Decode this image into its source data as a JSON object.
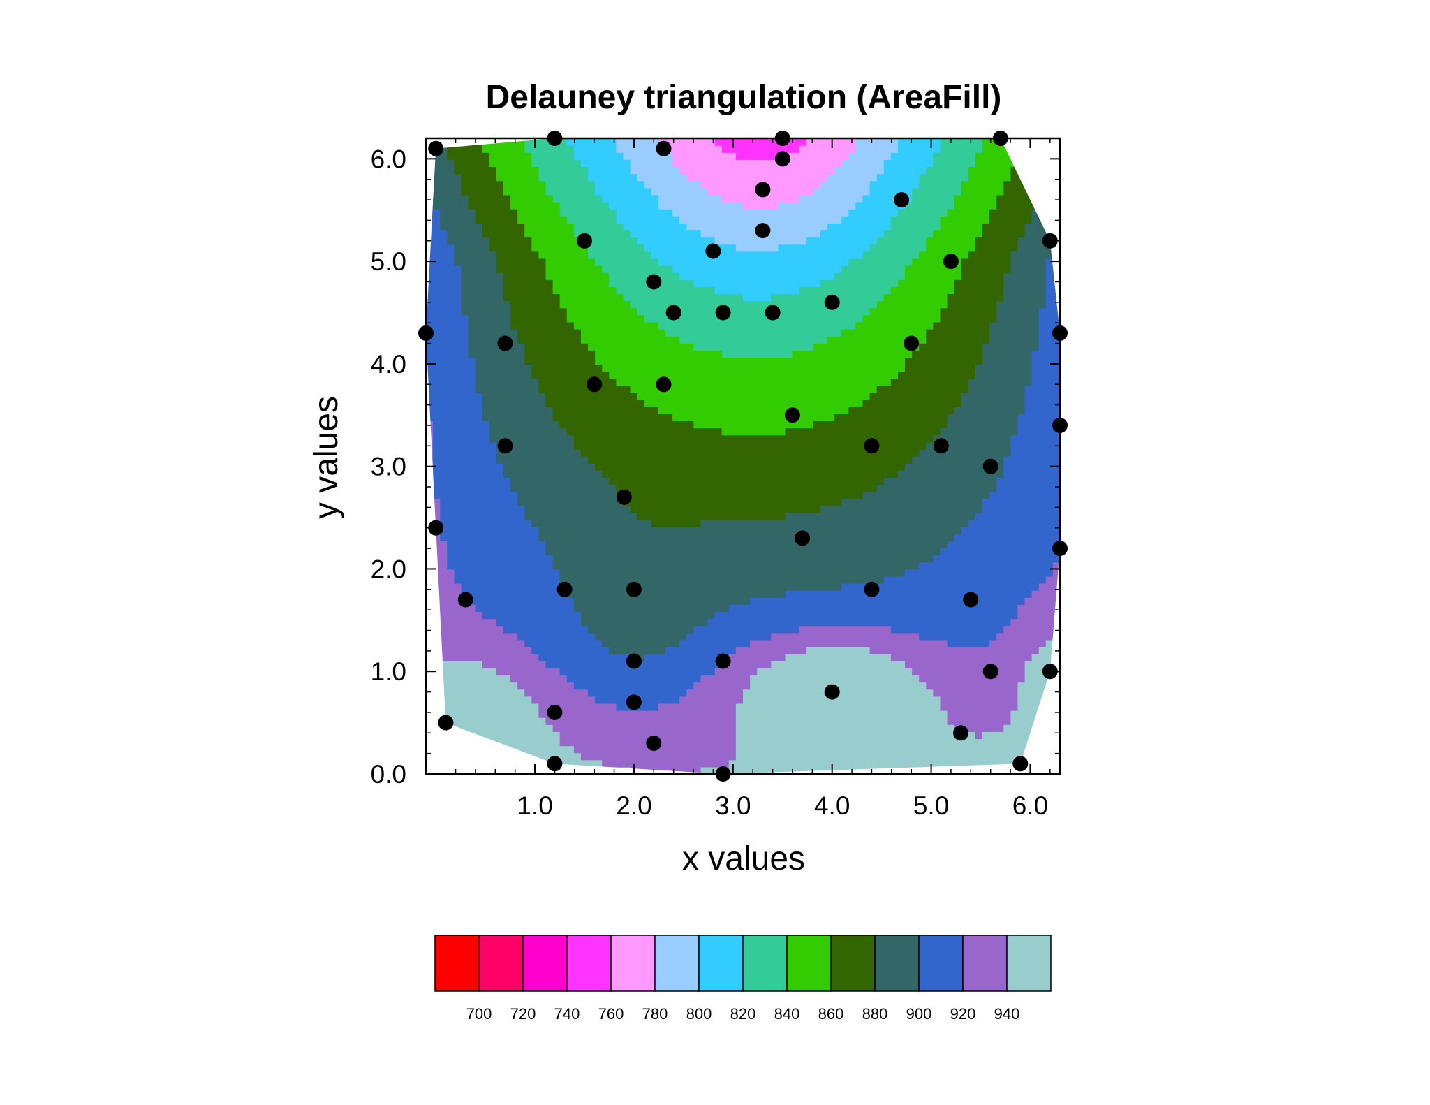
{
  "chart_data": {
    "type": "contour",
    "title": "Delauney triangulation (AreaFill)",
    "xlabel": "x values",
    "ylabel": "y values",
    "xlim": [
      -0.1,
      6.3
    ],
    "ylim": [
      0.0,
      6.2
    ],
    "x_ticks": [
      {
        "value": 1.0,
        "label": "1.0"
      },
      {
        "value": 2.0,
        "label": "2.0"
      },
      {
        "value": 3.0,
        "label": "3.0"
      },
      {
        "value": 4.0,
        "label": "4.0"
      },
      {
        "value": 5.0,
        "label": "5.0"
      },
      {
        "value": 6.0,
        "label": "6.0"
      }
    ],
    "y_ticks": [
      {
        "value": 0.0,
        "label": "0.0"
      },
      {
        "value": 1.0,
        "label": "1.0"
      },
      {
        "value": 2.0,
        "label": "2.0"
      },
      {
        "value": 3.0,
        "label": "3.0"
      },
      {
        "value": 4.0,
        "label": "4.0"
      },
      {
        "value": 5.0,
        "label": "5.0"
      },
      {
        "value": 6.0,
        "label": "6.0"
      }
    ],
    "contour_levels": [
      700,
      720,
      740,
      760,
      780,
      800,
      820,
      840,
      860,
      880,
      900,
      920,
      940
    ],
    "level_labels": [
      "700",
      "720",
      "740",
      "760",
      "780",
      "800",
      "820",
      "840",
      "860",
      "880",
      "900",
      "920",
      "940"
    ],
    "fill_colors": [
      "#ff0000",
      "#ff0066",
      "#ff00cc",
      "#ff33ff",
      "#ff99ff",
      "#99ccff",
      "#33ccff",
      "#33cc99",
      "#33cc00",
      "#336600",
      "#336666",
      "#3366cc",
      "#9966cc",
      "#99cccc"
    ],
    "points": [
      {
        "x": 0.0,
        "y": 6.1
      },
      {
        "x": 1.2,
        "y": 6.2
      },
      {
        "x": 2.3,
        "y": 6.1
      },
      {
        "x": 3.5,
        "y": 6.2
      },
      {
        "x": 3.5,
        "y": 6.0
      },
      {
        "x": 3.3,
        "y": 5.7
      },
      {
        "x": 1.5,
        "y": 5.2
      },
      {
        "x": 2.2,
        "y": 4.8
      },
      {
        "x": 2.8,
        "y": 5.1
      },
      {
        "x": 3.3,
        "y": 5.3
      },
      {
        "x": 2.4,
        "y": 4.5
      },
      {
        "x": 2.9,
        "y": 4.5
      },
      {
        "x": 3.4,
        "y": 4.5
      },
      {
        "x": 4.0,
        "y": 4.6
      },
      {
        "x": 4.7,
        "y": 5.6
      },
      {
        "x": 5.2,
        "y": 5.0
      },
      {
        "x": 5.7,
        "y": 6.2
      },
      {
        "x": 6.2,
        "y": 5.2
      },
      {
        "x": -0.1,
        "y": 4.3
      },
      {
        "x": 0.7,
        "y": 4.2
      },
      {
        "x": 1.6,
        "y": 3.8
      },
      {
        "x": 2.3,
        "y": 3.8
      },
      {
        "x": 3.6,
        "y": 3.5
      },
      {
        "x": 4.8,
        "y": 4.2
      },
      {
        "x": 6.3,
        "y": 4.3
      },
      {
        "x": 0.7,
        "y": 3.2
      },
      {
        "x": 1.9,
        "y": 2.7
      },
      {
        "x": 4.4,
        "y": 3.2
      },
      {
        "x": 5.1,
        "y": 3.2
      },
      {
        "x": 5.6,
        "y": 3.0
      },
      {
        "x": 6.3,
        "y": 3.4
      },
      {
        "x": 0.0,
        "y": 2.4
      },
      {
        "x": 3.7,
        "y": 2.3
      },
      {
        "x": 6.3,
        "y": 2.2
      },
      {
        "x": 0.3,
        "y": 1.7
      },
      {
        "x": 1.3,
        "y": 1.8
      },
      {
        "x": 2.0,
        "y": 1.8
      },
      {
        "x": 4.4,
        "y": 1.8
      },
      {
        "x": 5.4,
        "y": 1.7
      },
      {
        "x": 2.0,
        "y": 1.1
      },
      {
        "x": 2.9,
        "y": 1.1
      },
      {
        "x": 5.6,
        "y": 1.0
      },
      {
        "x": 6.2,
        "y": 1.0
      },
      {
        "x": 4.0,
        "y": 0.8
      },
      {
        "x": 2.0,
        "y": 0.7
      },
      {
        "x": 0.1,
        "y": 0.5
      },
      {
        "x": 1.2,
        "y": 0.6
      },
      {
        "x": 2.2,
        "y": 0.3
      },
      {
        "x": 5.3,
        "y": 0.4
      },
      {
        "x": 1.2,
        "y": 0.1
      },
      {
        "x": 2.9,
        "y": 0.0
      },
      {
        "x": 5.9,
        "y": 0.1
      }
    ]
  }
}
